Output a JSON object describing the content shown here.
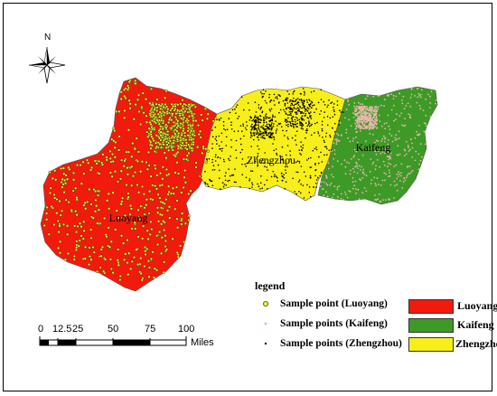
{
  "north": {
    "label": "N",
    "icon": "north-arrow-icon"
  },
  "regions": [
    {
      "key": "luoyang",
      "label": "Luoyang",
      "color": "#f21a0d"
    },
    {
      "key": "zhengzhou",
      "label": "Zhengzhou",
      "color": "#f7ee1a"
    },
    {
      "key": "kaifeng",
      "label": "Kaifeng",
      "color": "#3e9a26"
    }
  ],
  "legend": {
    "title": "legend",
    "points": [
      {
        "label": "Sample point (Luoyang)",
        "color": "#e8ef38"
      },
      {
        "label": "Sample points (Kaifeng)",
        "color": "#e8b8b0"
      },
      {
        "label": "Sample points (Zhengzhou)",
        "color": "#000000"
      }
    ],
    "areas": [
      {
        "label": "Luoyang",
        "color": "#f21a0d"
      },
      {
        "label": "Kaifeng",
        "color": "#3e9a26"
      },
      {
        "label": "Zhengzhou",
        "color": "#f7ee1a"
      }
    ]
  },
  "scalebar": {
    "ticks": [
      "0",
      "12.5",
      "25",
      "50",
      "75",
      "100"
    ],
    "unit": "Miles"
  }
}
